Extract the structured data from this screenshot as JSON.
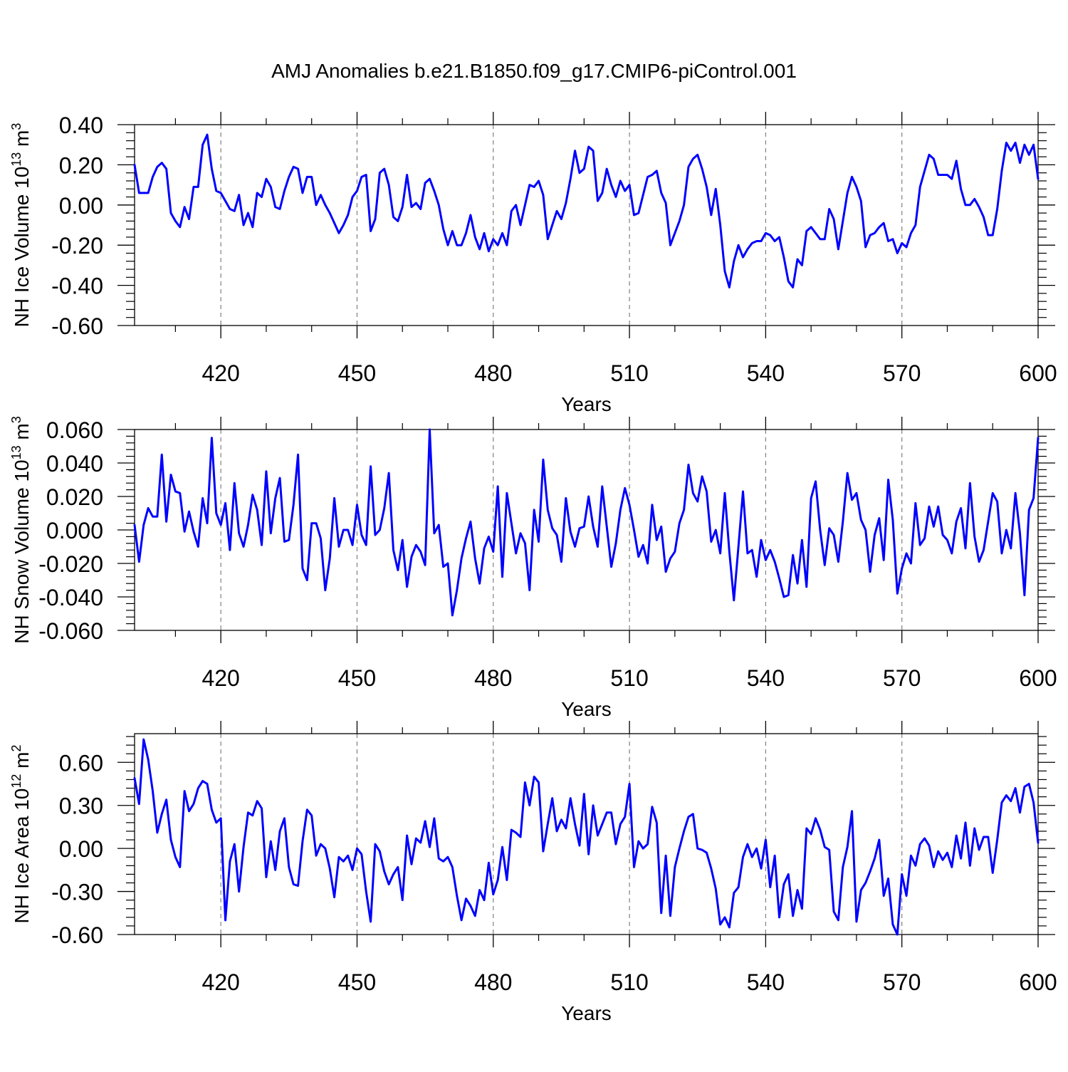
{
  "figure": {
    "title": "AMJ Anomalies b.e21.B1850.f09_g17.CMIP6-piControl.001"
  },
  "colors": {
    "series": "#0000ff",
    "axis": "#000000",
    "grid": "#808080"
  },
  "chart_data": [
    {
      "type": "line",
      "title": "AMJ Anomalies b.e21.B1850.f09_g17.CMIP6-piControl.001",
      "xlabel": "Years",
      "ylabel": "NH Ice Volume 10^13 m^3",
      "ylabel_parts": {
        "main": "NH Ice Volume 10",
        "exp1": "13",
        "mid": " m",
        "exp2": "3"
      },
      "xlim": [
        401,
        600
      ],
      "ylim": [
        -0.6,
        0.4
      ],
      "xticks": [
        420,
        450,
        480,
        510,
        540,
        570,
        600
      ],
      "xtick_labels": [
        "420",
        "450",
        "480",
        "510",
        "540",
        "570",
        "600"
      ],
      "yticks": [
        -0.6,
        -0.4,
        -0.2,
        0.0,
        0.2,
        0.4
      ],
      "ytick_labels": [
        "-0.60",
        "-0.40",
        "-0.20",
        "0.00",
        "0.20",
        "0.40"
      ],
      "grid": "vertical dashed at x ticks",
      "x_start": 401,
      "series": [
        {
          "values": [
            0.2,
            0.06,
            0.06,
            0.06,
            0.14,
            0.19,
            0.21,
            0.18,
            -0.04,
            -0.08,
            -0.11,
            -0.01,
            -0.07,
            0.09,
            0.09,
            0.3,
            0.35,
            0.18,
            0.07,
            0.06,
            0.02,
            -0.02,
            -0.03,
            0.05,
            -0.1,
            -0.04,
            -0.11,
            0.06,
            0.04,
            0.13,
            0.09,
            -0.01,
            -0.02,
            0.07,
            0.14,
            0.19,
            0.18,
            0.06,
            0.14,
            0.14,
            0.0,
            0.05,
            0.0,
            -0.04,
            -0.09,
            -0.14,
            -0.1,
            -0.05,
            0.04,
            0.07,
            0.14,
            0.15,
            -0.13,
            -0.07,
            0.16,
            0.18,
            0.1,
            -0.06,
            -0.08,
            -0.01,
            0.15,
            -0.01,
            0.01,
            -0.02,
            0.11,
            0.13,
            0.07,
            0.0,
            -0.12,
            -0.2,
            -0.13,
            -0.2,
            -0.2,
            -0.14,
            -0.05,
            -0.16,
            -0.22,
            -0.14,
            -0.23,
            -0.17,
            -0.2,
            -0.14,
            -0.2,
            -0.03,
            0.0,
            -0.1,
            0.0,
            0.1,
            0.09,
            0.12,
            0.05,
            -0.17,
            -0.1,
            -0.03,
            -0.07,
            0.01,
            0.13,
            0.27,
            0.16,
            0.18,
            0.29,
            0.27,
            0.02,
            0.06,
            0.18,
            0.1,
            0.04,
            0.12,
            0.07,
            0.1,
            -0.05,
            -0.04,
            0.05,
            0.14,
            0.15,
            0.17,
            0.06,
            0.01,
            -0.2,
            -0.14,
            -0.08,
            0.0,
            0.19,
            0.23,
            0.25,
            0.18,
            0.09,
            -0.05,
            0.08,
            -0.1,
            -0.33,
            -0.41,
            -0.28,
            -0.2,
            -0.26,
            -0.22,
            -0.19,
            -0.18,
            -0.18,
            -0.14,
            -0.15,
            -0.18,
            -0.16,
            -0.26,
            -0.38,
            -0.41,
            -0.27,
            -0.3,
            -0.13,
            -0.11,
            -0.14,
            -0.17,
            -0.17,
            -0.02,
            -0.07,
            -0.22,
            -0.08,
            0.06,
            0.14,
            0.09,
            0.02,
            -0.21,
            -0.15,
            -0.14,
            -0.11,
            -0.09,
            -0.18,
            -0.17,
            -0.24,
            -0.19,
            -0.21,
            -0.14,
            -0.1,
            0.09,
            0.17,
            0.25,
            0.23,
            0.15,
            0.15,
            0.15,
            0.13,
            0.22,
            0.08,
            0.0,
            0.0,
            0.03,
            -0.01,
            -0.06,
            -0.15,
            -0.15,
            -0.02,
            0.17,
            0.31,
            0.27,
            0.31,
            0.21,
            0.3,
            0.25,
            0.3,
            0.13
          ]
        }
      ]
    },
    {
      "type": "line",
      "title": "",
      "xlabel": "Years",
      "ylabel": "NH Snow Volume 10^13 m^3",
      "ylabel_parts": {
        "main": "NH Snow Volume 10",
        "exp1": "13",
        "mid": " m",
        "exp2": "3"
      },
      "xlim": [
        401,
        600
      ],
      "ylim": [
        -0.06,
        0.06
      ],
      "xticks": [
        420,
        450,
        480,
        510,
        540,
        570,
        600
      ],
      "xtick_labels": [
        "420",
        "450",
        "480",
        "510",
        "540",
        "570",
        "600"
      ],
      "yticks": [
        -0.06,
        -0.04,
        -0.02,
        0.0,
        0.02,
        0.04,
        0.06
      ],
      "ytick_labels": [
        "-0.060",
        "-0.040",
        "-0.020",
        "0.000",
        "0.020",
        "0.040",
        "0.060"
      ],
      "grid": "vertical dashed at x ticks",
      "x_start": 401,
      "series": [
        {
          "values": [
            0.003,
            -0.019,
            0.003,
            0.013,
            0.008,
            0.008,
            0.045,
            0.005,
            0.033,
            0.023,
            0.022,
            -0.001,
            0.011,
            -0.001,
            -0.01,
            0.019,
            0.004,
            0.055,
            0.01,
            0.003,
            0.016,
            -0.012,
            0.028,
            -0.002,
            -0.01,
            0.003,
            0.021,
            0.012,
            -0.009,
            0.035,
            -0.002,
            0.019,
            0.031,
            -0.007,
            -0.006,
            0.015,
            0.045,
            -0.023,
            -0.03,
            0.004,
            0.004,
            -0.005,
            -0.036,
            -0.017,
            0.019,
            -0.01,
            0.0,
            0.0,
            -0.009,
            0.015,
            -0.003,
            -0.009,
            0.038,
            -0.003,
            0.0,
            0.013,
            0.034,
            -0.012,
            -0.024,
            -0.006,
            -0.034,
            -0.016,
            -0.009,
            -0.013,
            -0.021,
            0.06,
            -0.002,
            0.003,
            -0.022,
            -0.02,
            -0.051,
            -0.036,
            -0.017,
            -0.005,
            0.005,
            -0.017,
            -0.032,
            -0.011,
            -0.004,
            -0.013,
            0.026,
            -0.028,
            0.022,
            0.004,
            -0.014,
            -0.002,
            -0.008,
            -0.036,
            0.012,
            -0.007,
            0.042,
            0.012,
            0.001,
            -0.003,
            -0.019,
            0.019,
            -0.001,
            -0.01,
            0.001,
            0.002,
            0.02,
            0.002,
            -0.01,
            0.026,
            0.002,
            -0.022,
            -0.008,
            0.012,
            0.025,
            0.015,
            0.0,
            -0.016,
            -0.009,
            -0.02,
            0.015,
            -0.006,
            0.002,
            -0.025,
            -0.017,
            -0.013,
            0.004,
            0.012,
            0.039,
            0.022,
            0.017,
            0.032,
            0.023,
            -0.007,
            0.0,
            -0.014,
            0.022,
            -0.013,
            -0.042,
            -0.01,
            0.023,
            -0.014,
            -0.012,
            -0.028,
            -0.006,
            -0.018,
            -0.012,
            -0.019,
            -0.029,
            -0.04,
            -0.039,
            -0.015,
            -0.032,
            -0.006,
            -0.034,
            0.019,
            0.029,
            0.0,
            -0.021,
            0.001,
            -0.003,
            -0.019,
            0.005,
            0.034,
            0.018,
            0.022,
            0.006,
            0.0,
            -0.025,
            -0.003,
            0.007,
            -0.018,
            0.03,
            0.006,
            -0.038,
            -0.023,
            -0.014,
            -0.02,
            0.016,
            -0.009,
            -0.005,
            0.014,
            0.002,
            0.014,
            -0.003,
            -0.006,
            -0.014,
            0.005,
            0.013,
            -0.011,
            0.028,
            -0.004,
            -0.019,
            -0.012,
            0.005,
            0.022,
            0.017,
            -0.014,
            0.0,
            -0.011,
            0.022,
            -0.002,
            -0.039,
            0.012,
            0.019,
            0.055
          ]
        }
      ]
    },
    {
      "type": "line",
      "title": "",
      "xlabel": "Years",
      "ylabel": "NH Ice Area 10^12 m^2",
      "ylabel_parts": {
        "main": "NH Ice Area 10",
        "exp1": "12",
        "mid": " m",
        "exp2": "2"
      },
      "xlim": [
        401,
        600
      ],
      "ylim": [
        -0.6,
        0.8
      ],
      "xticks": [
        420,
        450,
        480,
        510,
        540,
        570,
        600
      ],
      "xtick_labels": [
        "420",
        "450",
        "480",
        "510",
        "540",
        "570",
        "600"
      ],
      "yticks": [
        -0.6,
        -0.3,
        0.0,
        0.3,
        0.6
      ],
      "ytick_labels": [
        "-0.60",
        "-0.30",
        "0.00",
        "0.30",
        "0.60"
      ],
      "grid": "vertical dashed at x ticks",
      "x_start": 401,
      "series": [
        {
          "values": [
            0.49,
            0.31,
            0.76,
            0.62,
            0.4,
            0.11,
            0.24,
            0.34,
            0.06,
            -0.06,
            -0.13,
            0.4,
            0.26,
            0.31,
            0.42,
            0.47,
            0.45,
            0.27,
            0.18,
            0.21,
            -0.5,
            -0.09,
            0.03,
            -0.3,
            0.01,
            0.25,
            0.23,
            0.33,
            0.28,
            -0.2,
            0.05,
            -0.15,
            0.12,
            0.21,
            -0.13,
            -0.25,
            -0.26,
            0.05,
            0.27,
            0.23,
            -0.05,
            0.03,
            0.0,
            -0.14,
            -0.34,
            -0.06,
            -0.09,
            -0.05,
            -0.15,
            0.0,
            -0.04,
            -0.3,
            -0.51,
            0.03,
            -0.02,
            -0.16,
            -0.25,
            -0.18,
            -0.13,
            -0.36,
            0.09,
            -0.11,
            0.07,
            0.04,
            0.19,
            0.01,
            0.21,
            -0.07,
            -0.09,
            -0.06,
            -0.13,
            -0.33,
            -0.5,
            -0.35,
            -0.4,
            -0.47,
            -0.29,
            -0.36,
            -0.1,
            -0.32,
            -0.22,
            0.01,
            -0.22,
            0.13,
            0.11,
            0.08,
            0.46,
            0.3,
            0.5,
            0.46,
            -0.02,
            0.17,
            0.35,
            0.12,
            0.2,
            0.14,
            0.35,
            0.17,
            0.02,
            0.38,
            -0.04,
            0.3,
            0.09,
            0.17,
            0.25,
            0.25,
            0.03,
            0.17,
            0.22,
            0.45,
            -0.13,
            0.05,
            0.0,
            0.03,
            0.29,
            0.18,
            -0.45,
            -0.05,
            -0.47,
            -0.13,
            0.0,
            0.12,
            0.22,
            0.24,
            0.0,
            -0.01,
            -0.03,
            -0.14,
            -0.28,
            -0.53,
            -0.48,
            -0.55,
            -0.31,
            -0.27,
            -0.06,
            0.03,
            -0.06,
            0.0,
            -0.14,
            0.06,
            -0.27,
            -0.05,
            -0.48,
            -0.25,
            -0.18,
            -0.47,
            -0.29,
            -0.42,
            0.14,
            0.1,
            0.21,
            0.13,
            0.01,
            -0.01,
            -0.44,
            -0.5,
            -0.13,
            0.01,
            0.26,
            -0.51,
            -0.29,
            -0.24,
            -0.16,
            -0.07,
            0.06,
            -0.33,
            -0.21,
            -0.53,
            -0.6,
            -0.18,
            -0.33,
            -0.05,
            -0.12,
            0.03,
            0.07,
            0.02,
            -0.13,
            -0.02,
            -0.08,
            -0.03,
            -0.13,
            0.09,
            -0.07,
            0.18,
            -0.12,
            0.14,
            -0.01,
            0.08,
            0.08,
            -0.17,
            0.06,
            0.32,
            0.37,
            0.33,
            0.42,
            0.25,
            0.43,
            0.45,
            0.32,
            0.04
          ]
        }
      ]
    }
  ]
}
